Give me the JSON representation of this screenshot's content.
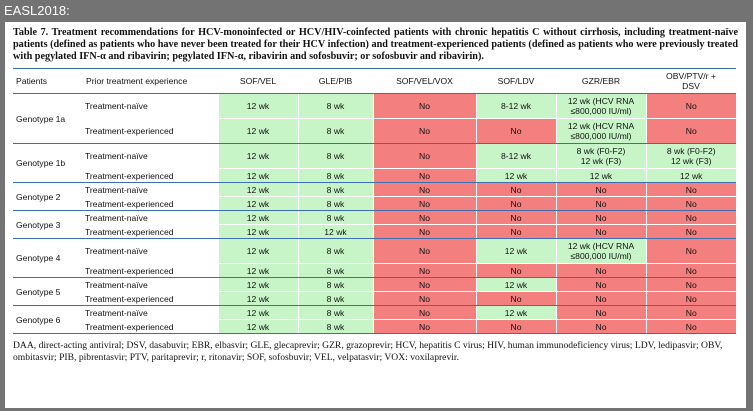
{
  "header": {
    "label": "EASL2018:"
  },
  "table": {
    "caption": "Table 7. Treatment recommendations for HCV-monoinfected or HCV/HIV-coinfected patients with chronic hepatitis C without cirrhosis, including treatment-naïve patients (defined as patients who have never been treated for their HCV infection) and treatment-experienced patients (defined as patients who were previously treated with pegylated IFN-α and ribavirin; pegylated IFN-α, ribavirin and sofosbuvir; or sofosbuvir and ribavirin).",
    "columns": [
      "Patients",
      "Prior treatment experience",
      "SOF/VEL",
      "GLE/PIB",
      "SOF/VEL/VOX",
      "SOF/LDV",
      "GZR/EBR",
      "OBV/PTV/r +\nDSV"
    ],
    "groups": [
      {
        "patients": "Genotype 1a",
        "rows": [
          {
            "experience": "Treatment-naïve",
            "cells": [
              "12 wk",
              "8 wk",
              "No",
              "8-12 wk",
              "12 wk (HCV RNA\n≤800,000 IU/ml)",
              "No"
            ],
            "fills": [
              "#c8f5c8",
              "#c8f5c8",
              "#f47f7f",
              "#c8f5c8",
              "#c8f5c8",
              "#f47f7f"
            ]
          },
          {
            "experience": "Treatment-experienced",
            "cells": [
              "12 wk",
              "8 wk",
              "No",
              "No",
              "12 wk (HCV RNA\n≤800,000 IU/ml)",
              "No"
            ],
            "fills": [
              "#c8f5c8",
              "#c8f5c8",
              "#f47f7f",
              "#f47f7f",
              "#c8f5c8",
              "#f47f7f"
            ]
          }
        ]
      },
      {
        "patients": "Genotype 1b",
        "rows": [
          {
            "experience": "Treatment-naïve",
            "cells": [
              "12 wk",
              "8 wk",
              "No",
              "8-12 wk",
              "8 wk (F0-F2)\n12 wk (F3)",
              "8 wk (F0-F2)\n12 wk (F3)"
            ],
            "fills": [
              "#c8f5c8",
              "#c8f5c8",
              "#f47f7f",
              "#c8f5c8",
              "#c8f5c8",
              "#c8f5c8"
            ]
          },
          {
            "experience": "Treatment-experienced",
            "cells": [
              "12 wk",
              "8 wk",
              "No",
              "12 wk",
              "12 wk",
              "12 wk"
            ],
            "fills": [
              "#c8f5c8",
              "#c8f5c8",
              "#f47f7f",
              "#c8f5c8",
              "#c8f5c8",
              "#c8f5c8"
            ]
          }
        ]
      },
      {
        "patients": "Genotype 2",
        "rows": [
          {
            "experience": "Treatment-naïve",
            "cells": [
              "12 wk",
              "8 wk",
              "No",
              "No",
              "No",
              "No"
            ],
            "fills": [
              "#c8f5c8",
              "#c8f5c8",
              "#f47f7f",
              "#f47f7f",
              "#f47f7f",
              "#f47f7f"
            ]
          },
          {
            "experience": "Treatment-experienced",
            "cells": [
              "12 wk",
              "8 wk",
              "No",
              "No",
              "No",
              "No"
            ],
            "fills": [
              "#c8f5c8",
              "#c8f5c8",
              "#f47f7f",
              "#f47f7f",
              "#f47f7f",
              "#f47f7f"
            ]
          }
        ]
      },
      {
        "patients": "Genotype 3",
        "rows": [
          {
            "experience": "Treatment-naïve",
            "cells": [
              "12 wk",
              "8 wk",
              "No",
              "No",
              "No",
              "No"
            ],
            "fills": [
              "#c8f5c8",
              "#c8f5c8",
              "#f47f7f",
              "#f47f7f",
              "#f47f7f",
              "#f47f7f"
            ]
          },
          {
            "experience": "Treatment-experienced",
            "cells": [
              "12 wk",
              "12 wk",
              "No",
              "No",
              "No",
              "No"
            ],
            "fills": [
              "#c8f5c8",
              "#c8f5c8",
              "#f47f7f",
              "#f47f7f",
              "#f47f7f",
              "#f47f7f"
            ]
          }
        ]
      },
      {
        "patients": "Genotype 4",
        "rows": [
          {
            "experience": "Treatment-naïve",
            "cells": [
              "12 wk",
              "8 wk",
              "No",
              "12 wk",
              "12 wk (HCV RNA\n≤800,000 IU/ml)",
              "No"
            ],
            "fills": [
              "#c8f5c8",
              "#c8f5c8",
              "#f47f7f",
              "#c8f5c8",
              "#c8f5c8",
              "#f47f7f"
            ]
          },
          {
            "experience": "Treatment-experienced",
            "cells": [
              "12 wk",
              "8 wk",
              "No",
              "No",
              "No",
              "No"
            ],
            "fills": [
              "#c8f5c8",
              "#c8f5c8",
              "#f47f7f",
              "#f47f7f",
              "#f47f7f",
              "#f47f7f"
            ]
          }
        ]
      },
      {
        "patients": "Genotype 5",
        "rows": [
          {
            "experience": "Treatment-naïve",
            "cells": [
              "12 wk",
              "8 wk",
              "No",
              "12 wk",
              "No",
              "No"
            ],
            "fills": [
              "#c8f5c8",
              "#c8f5c8",
              "#f47f7f",
              "#c8f5c8",
              "#f47f7f",
              "#f47f7f"
            ]
          },
          {
            "experience": "Treatment-experienced",
            "cells": [
              "12 wk",
              "8 wk",
              "No",
              "No",
              "No",
              "No"
            ],
            "fills": [
              "#c8f5c8",
              "#c8f5c8",
              "#f47f7f",
              "#f47f7f",
              "#f47f7f",
              "#f47f7f"
            ]
          }
        ]
      },
      {
        "patients": "Genotype 6",
        "rows": [
          {
            "experience": "Treatment-naïve",
            "cells": [
              "12 wk",
              "8 wk",
              "No",
              "12 wk",
              "No",
              "No"
            ],
            "fills": [
              "#c8f5c8",
              "#c8f5c8",
              "#f47f7f",
              "#c8f5c8",
              "#f47f7f",
              "#f47f7f"
            ]
          },
          {
            "experience": "Treatment-experienced",
            "cells": [
              "12 wk",
              "8 wk",
              "No",
              "No",
              "No",
              "No"
            ],
            "fills": [
              "#c8f5c8",
              "#c8f5c8",
              "#f47f7f",
              "#f47f7f",
              "#f47f7f",
              "#f47f7f"
            ]
          }
        ]
      }
    ],
    "footnote": "DAA, direct-acting antiviral; DSV, dasabuvir; EBR, elbasvir; GLE, glecaprevir; GZR, grazoprevir; HCV, hepatitis C virus; HIV, human immunodeficiency virus; LDV, ledipasvir; OBV, ombitasvir; PIB, pibrentasvir; PTV, paritaprevir; r, ritonavir; SOF, sofosbuvir; VEL, velpatasvir; VOX: voxilaprevir."
  }
}
